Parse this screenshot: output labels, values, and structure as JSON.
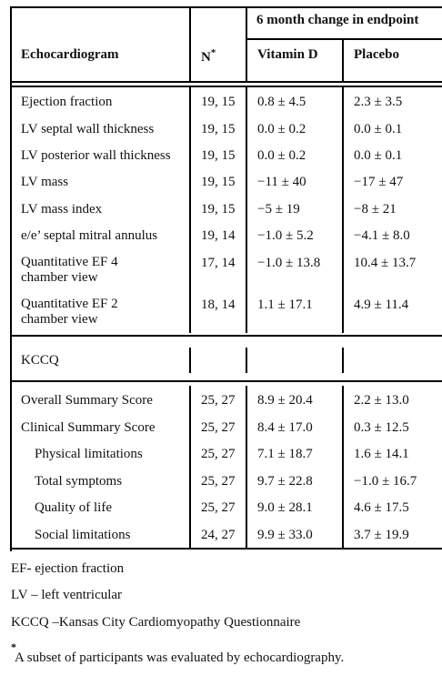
{
  "header": {
    "group_title": "6 month change in endpoint",
    "col_measure": "Echocardiogram",
    "col_n": "N",
    "col_n_mark": "*",
    "col_vitd": "Vitamin D",
    "col_placebo": "Placebo"
  },
  "echo_rows": [
    {
      "label": "Ejection fraction",
      "n": "19, 15",
      "vitd": "0.8 ± 4.5",
      "placebo": "2.3 ± 3.5"
    },
    {
      "label": "LV septal wall thickness",
      "n": "19, 15",
      "vitd": "0.0 ± 0.2",
      "placebo": "0.0 ± 0.1"
    },
    {
      "label": "LV posterior wall thickness",
      "n": "19, 15",
      "vitd": "0.0 ± 0.2",
      "placebo": "0.0 ± 0.1"
    },
    {
      "label": "LV mass",
      "n": "19, 15",
      "vitd": "−11 ± 40",
      "placebo": "−17 ± 47"
    },
    {
      "label": "LV mass index",
      "n": "19, 15",
      "vitd": "−5 ± 19",
      "placebo": "−8 ± 21"
    },
    {
      "label": "e/e’ septal mitral annulus",
      "n": "19, 14",
      "vitd": "−1.0 ± 5.2",
      "placebo": "−4.1 ± 8.0"
    },
    {
      "label": "Quantitative EF 4 chamber view",
      "n": "17, 14",
      "vitd": "−1.0 ± 13.8",
      "placebo": "10.4 ± 13.7"
    },
    {
      "label": "Quantitative EF 2 chamber view",
      "n": "18, 14",
      "vitd": "1.1 ± 17.1",
      "placebo": "4.9 ± 11.4"
    }
  ],
  "kccq_section_label": "KCCQ",
  "kccq_rows": [
    {
      "label": "Overall Summary Score",
      "n": "25, 27",
      "vitd": "8.9 ± 20.4",
      "placebo": "2.2 ± 13.0"
    },
    {
      "label": "Clinical Summary Score",
      "n": "25, 27",
      "vitd": "8.4 ± 17.0",
      "placebo": "0.3 ± 12.5"
    },
    {
      "label": "Physical limitations",
      "n": "25, 27",
      "vitd": "7.1 ± 18.7",
      "placebo": "1.6 ± 14.1"
    },
    {
      "label": "Total symptoms",
      "n": "25, 27",
      "vitd": "9.7 ± 22.8",
      "placebo": "−1.0 ± 16.7"
    },
    {
      "label": "Quality of life",
      "n": "25, 27",
      "vitd": "9.0 ± 28.1",
      "placebo": "4.6 ± 17.5"
    },
    {
      "label": "Social limitations",
      "n": "24, 27",
      "vitd": "9.9 ± 33.0",
      "placebo": "3.7 ± 19.9"
    }
  ],
  "footnotes": {
    "ef": "EF- ejection fraction",
    "lv": "LV – left ventricular",
    "kccq": "KCCQ –Kansas City Cardiomyopathy Questionnaire",
    "asterisk_mark": "*",
    "asterisk_text": "A subset of participants was evaluated by echocardiography."
  }
}
